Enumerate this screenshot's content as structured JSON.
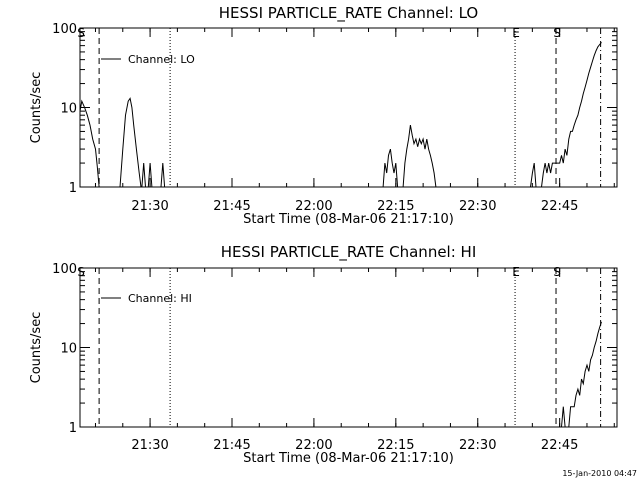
{
  "footer": {
    "timestamp": "15-Jan-2010 04:47"
  },
  "chart_data": [
    {
      "type": "line",
      "title": "HESSI PARTICLE_RATE Channel: LO",
      "xlabel": "Start Time (08-Mar-06 21:17:10)",
      "ylabel": "Counts/sec",
      "y_scale": "log",
      "xlim": [
        "21:17:10",
        "22:55:30"
      ],
      "ylim": [
        1,
        100
      ],
      "x_ticks": [
        "21:30",
        "21:45",
        "22:00",
        "22:15",
        "22:30",
        "22:45"
      ],
      "y_ticks": [
        "1",
        "10",
        "100"
      ],
      "legend": {
        "entries": [
          "Channel: LO"
        ],
        "placement": "top-left"
      },
      "markers": [
        {
          "label": "S",
          "time": "21:17:10",
          "style": "none"
        },
        {
          "label": "",
          "time": "21:20:40",
          "style": "dashed"
        },
        {
          "label": "",
          "time": "21:33:40",
          "style": "dotted"
        },
        {
          "label": "E",
          "time": "22:36:50",
          "style": "dotted"
        },
        {
          "label": "S",
          "time": "22:44:20",
          "style": "dashed"
        },
        {
          "label": "",
          "time": "22:52:30",
          "style": "dash-dot"
        }
      ],
      "series": [
        {
          "name": "Channel: LO",
          "segments": [
            [
              [
                "21:17:10",
                9
              ],
              [
                "21:17:30",
                12
              ],
              [
                "21:18:00",
                10
              ],
              [
                "21:18:30",
                8
              ],
              [
                "21:19:00",
                6
              ],
              [
                "21:19:30",
                4
              ],
              [
                "21:20:00",
                3
              ],
              [
                "21:20:20",
                1.8
              ],
              [
                "21:20:40",
                1
              ]
            ],
            [
              [
                "21:24:30",
                1
              ],
              [
                "21:25:00",
                3
              ],
              [
                "21:25:30",
                8
              ],
              [
                "21:26:00",
                12
              ],
              [
                "21:26:20",
                13
              ],
              [
                "21:26:40",
                10
              ],
              [
                "21:27:00",
                6
              ],
              [
                "21:27:30",
                3
              ],
              [
                "21:28:00",
                1.5
              ],
              [
                "21:28:20",
                1
              ]
            ],
            [
              [
                "21:28:30",
                1
              ],
              [
                "21:28:50",
                2
              ],
              [
                "21:29:10",
                1
              ]
            ],
            [
              [
                "21:29:40",
                1
              ],
              [
                "21:30:00",
                2
              ],
              [
                "21:30:20",
                1
              ]
            ],
            [
              [
                "21:32:00",
                1
              ],
              [
                "21:32:20",
                2
              ],
              [
                "21:32:40",
                1
              ]
            ],
            [
              [
                "22:12:40",
                1
              ],
              [
                "22:13:00",
                2
              ],
              [
                "22:13:20",
                1.5
              ],
              [
                "22:13:40",
                2.5
              ],
              [
                "22:14:00",
                3
              ],
              [
                "22:14:20",
                2
              ],
              [
                "22:14:40",
                1.5
              ],
              [
                "22:15:00",
                2
              ],
              [
                "22:15:20",
                1
              ]
            ],
            [
              [
                "22:16:20",
                1
              ],
              [
                "22:16:40",
                2
              ],
              [
                "22:17:00",
                3
              ],
              [
                "22:17:20",
                4
              ],
              [
                "22:17:40",
                6
              ],
              [
                "22:18:00",
                4.5
              ],
              [
                "22:18:20",
                3.5
              ],
              [
                "22:18:40",
                4
              ],
              [
                "22:19:00",
                3.2
              ],
              [
                "22:19:20",
                4
              ],
              [
                "22:19:40",
                3.5
              ],
              [
                "22:20:00",
                4
              ],
              [
                "22:20:20",
                3
              ],
              [
                "22:20:40",
                4
              ],
              [
                "22:21:00",
                3
              ],
              [
                "22:21:20",
                2.5
              ],
              [
                "22:21:40",
                2
              ],
              [
                "22:22:00",
                1.5
              ],
              [
                "22:22:20",
                1
              ]
            ],
            [
              [
                "22:39:40",
                1
              ],
              [
                "22:40:00",
                1.5
              ],
              [
                "22:40:20",
                2
              ],
              [
                "22:40:40",
                1
              ]
            ],
            [
              [
                "22:41:40",
                1
              ],
              [
                "22:42:00",
                1.5
              ],
              [
                "22:42:20",
                2
              ],
              [
                "22:42:40",
                1.5
              ],
              [
                "22:43:00",
                2
              ],
              [
                "22:43:20",
                1.5
              ],
              [
                "22:43:40",
                2
              ],
              [
                "22:44:00",
                2
              ],
              [
                "22:45:00",
                2
              ],
              [
                "22:45:20",
                2.5
              ],
              [
                "22:45:40",
                2
              ],
              [
                "22:46:00",
                3
              ],
              [
                "22:46:20",
                2.5
              ],
              [
                "22:46:40",
                4
              ],
              [
                "22:47:00",
                5
              ],
              [
                "22:47:20",
                5
              ],
              [
                "22:47:40",
                6
              ],
              [
                "22:48:00",
                7
              ],
              [
                "22:48:20",
                8
              ],
              [
                "22:48:40",
                10
              ],
              [
                "22:49:00",
                12
              ],
              [
                "22:49:20",
                15
              ],
              [
                "22:49:40",
                18
              ],
              [
                "22:50:00",
                22
              ],
              [
                "22:50:20",
                27
              ],
              [
                "22:50:40",
                32
              ],
              [
                "22:51:00",
                38
              ],
              [
                "22:51:20",
                45
              ],
              [
                "22:51:40",
                52
              ],
              [
                "22:52:00",
                58
              ],
              [
                "22:52:20",
                62
              ],
              [
                "22:52:40",
                66
              ]
            ]
          ]
        }
      ]
    },
    {
      "type": "line",
      "title": "HESSI PARTICLE_RATE Channel: HI",
      "xlabel": "Start Time (08-Mar-06 21:17:10)",
      "ylabel": "Counts/sec",
      "y_scale": "log",
      "xlim": [
        "21:17:10",
        "22:55:30"
      ],
      "ylim": [
        1,
        100
      ],
      "x_ticks": [
        "21:30",
        "21:45",
        "22:00",
        "22:15",
        "22:30",
        "22:45"
      ],
      "y_ticks": [
        "1",
        "10",
        "100"
      ],
      "legend": {
        "entries": [
          "Channel: HI"
        ],
        "placement": "top-left"
      },
      "markers": [
        {
          "label": "S",
          "time": "21:17:10",
          "style": "none"
        },
        {
          "label": "",
          "time": "21:20:40",
          "style": "dashed"
        },
        {
          "label": "",
          "time": "21:33:40",
          "style": "dotted"
        },
        {
          "label": "E",
          "time": "22:36:50",
          "style": "dotted"
        },
        {
          "label": "S",
          "time": "22:44:20",
          "style": "dashed"
        },
        {
          "label": "",
          "time": "22:52:30",
          "style": "dash-dot"
        }
      ],
      "series": [
        {
          "name": "Channel: HI",
          "segments": [
            [
              [
                "22:45:20",
                1
              ],
              [
                "22:45:40",
                1.8
              ],
              [
                "22:46:00",
                1
              ]
            ],
            [
              [
                "22:46:40",
                1
              ],
              [
                "22:47:00",
                1.8
              ],
              [
                "22:47:40",
                1.8
              ],
              [
                "22:48:00",
                2.5
              ],
              [
                "22:48:20",
                3
              ],
              [
                "22:48:40",
                2.5
              ],
              [
                "22:49:00",
                4
              ],
              [
                "22:49:20",
                3.5
              ],
              [
                "22:49:40",
                5
              ],
              [
                "22:50:00",
                6
              ],
              [
                "22:50:20",
                5
              ],
              [
                "22:50:40",
                7
              ],
              [
                "22:51:00",
                8
              ],
              [
                "22:51:20",
                10
              ],
              [
                "22:51:40",
                12
              ],
              [
                "22:52:00",
                15
              ],
              [
                "22:52:20",
                18
              ],
              [
                "22:52:40",
                21
              ]
            ]
          ]
        }
      ]
    }
  ]
}
